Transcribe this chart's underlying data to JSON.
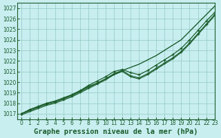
{
  "title": "Graphe pression niveau de la mer (hPa)",
  "bg_color": "#c8eef0",
  "plot_bg_color": "#c8eef0",
  "grid_color": "#90c8c0",
  "line_color": "#1a5c2a",
  "xlim": [
    -0.5,
    23
  ],
  "ylim": [
    1016.5,
    1027.5
  ],
  "yticks": [
    1017,
    1018,
    1019,
    1020,
    1021,
    1022,
    1023,
    1024,
    1025,
    1026,
    1027
  ],
  "xticks": [
    0,
    1,
    2,
    3,
    4,
    5,
    6,
    7,
    8,
    9,
    10,
    11,
    12,
    13,
    14,
    15,
    16,
    17,
    18,
    19,
    20,
    21,
    22,
    23
  ],
  "series": [
    {
      "name": "top_straight",
      "x": [
        0,
        1,
        2,
        3,
        4,
        5,
        6,
        7,
        8,
        9,
        10,
        11,
        12,
        13,
        14,
        15,
        16,
        17,
        18,
        19,
        20,
        21,
        22,
        23
      ],
      "y": [
        1017.0,
        1017.4,
        1017.7,
        1018.0,
        1018.2,
        1018.5,
        1018.8,
        1019.2,
        1019.6,
        1019.9,
        1020.3,
        1020.7,
        1021.1,
        1021.4,
        1021.7,
        1022.1,
        1022.5,
        1023.0,
        1023.5,
        1024.0,
        1024.8,
        1025.6,
        1026.4,
        1027.2
      ],
      "linestyle": "solid",
      "marker": null,
      "linewidth": 1.0
    },
    {
      "name": "upper_dip",
      "x": [
        0,
        1,
        2,
        3,
        4,
        5,
        6,
        7,
        8,
        9,
        10,
        11,
        12,
        13,
        14,
        15,
        16,
        17,
        18,
        19,
        20,
        21,
        22,
        23
      ],
      "y": [
        1017.0,
        1017.4,
        1017.7,
        1018.0,
        1018.2,
        1018.5,
        1018.8,
        1019.2,
        1019.7,
        1020.1,
        1020.5,
        1021.0,
        1021.2,
        1020.9,
        1020.7,
        1021.1,
        1021.6,
        1022.1,
        1022.6,
        1023.2,
        1024.0,
        1024.9,
        1025.8,
        1026.6
      ],
      "linestyle": "solid",
      "marker": "+",
      "linewidth": 0.9
    },
    {
      "name": "middle_dip",
      "x": [
        0,
        1,
        2,
        3,
        4,
        5,
        6,
        7,
        8,
        9,
        10,
        11,
        12,
        13,
        14,
        15,
        16,
        17,
        18,
        19,
        20,
        21,
        22,
        23
      ],
      "y": [
        1017.0,
        1017.3,
        1017.6,
        1017.9,
        1018.1,
        1018.4,
        1018.7,
        1019.1,
        1019.5,
        1019.9,
        1020.3,
        1020.8,
        1021.1,
        1020.6,
        1020.4,
        1020.8,
        1021.3,
        1021.8,
        1022.3,
        1022.9,
        1023.7,
        1024.6,
        1025.5,
        1026.4
      ],
      "linestyle": "solid",
      "marker": "+",
      "linewidth": 0.9
    },
    {
      "name": "lower_dip",
      "x": [
        0,
        1,
        2,
        3,
        4,
        5,
        6,
        7,
        8,
        9,
        10,
        11,
        12,
        13,
        14,
        15,
        16,
        17,
        18,
        19,
        20,
        21,
        22,
        23
      ],
      "y": [
        1016.9,
        1017.2,
        1017.5,
        1017.8,
        1018.0,
        1018.3,
        1018.6,
        1019.0,
        1019.4,
        1019.8,
        1020.2,
        1020.7,
        1021.0,
        1020.5,
        1020.3,
        1020.7,
        1021.2,
        1021.7,
        1022.2,
        1022.8,
        1023.6,
        1024.5,
        1025.4,
        1026.3
      ],
      "linestyle": "solid",
      "marker": null,
      "linewidth": 0.8
    }
  ],
  "title_fontsize": 7.5,
  "tick_fontsize": 5.5
}
